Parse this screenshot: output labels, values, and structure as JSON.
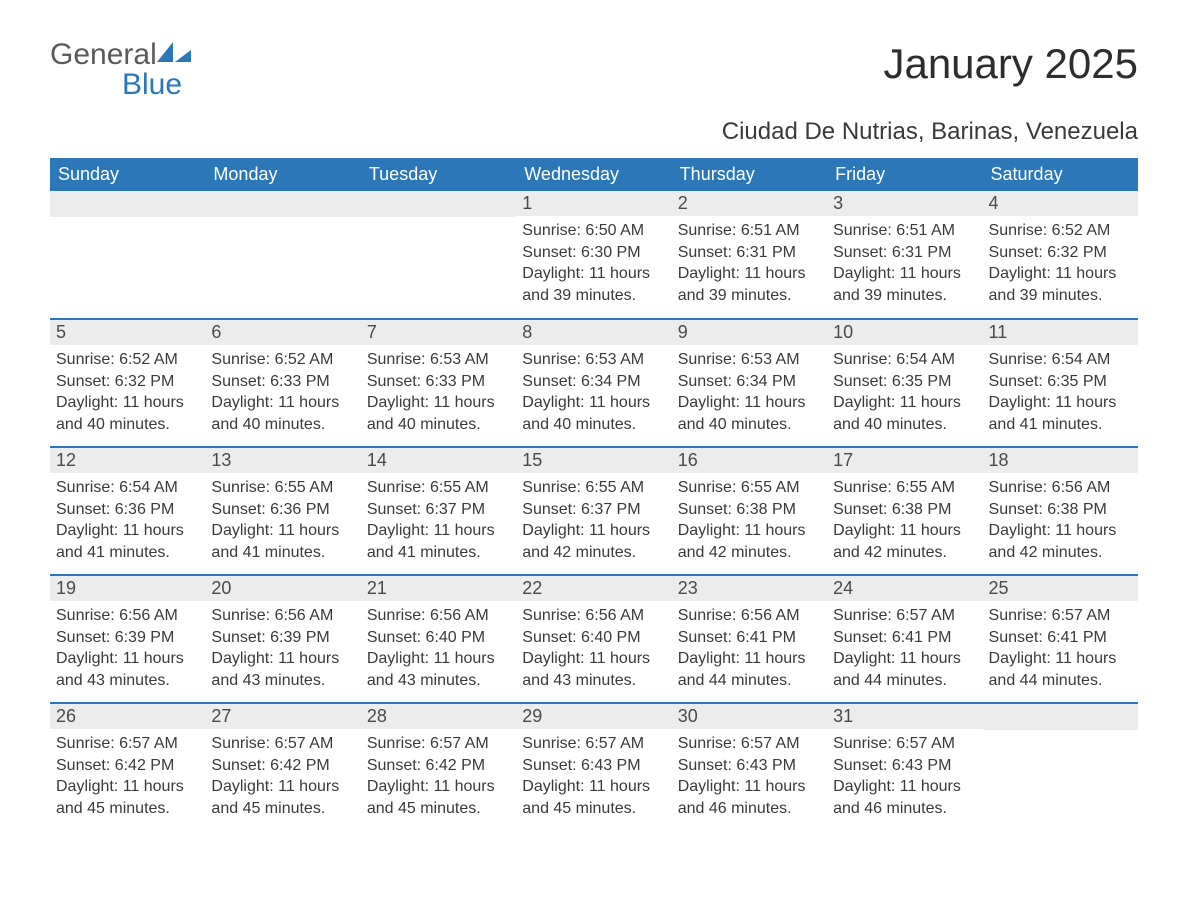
{
  "logo": {
    "general": "General",
    "blue": "Blue"
  },
  "title": "January 2025",
  "location": "Ciudad De Nutrias, Barinas, Venezuela",
  "colors": {
    "accent": "#2b77b8",
    "header_text": "#ffffff",
    "daynum_bg": "#ececec",
    "body_text": "#3a3a3a",
    "page_bg": "#ffffff"
  },
  "calendar": {
    "columns": [
      "Sunday",
      "Monday",
      "Tuesday",
      "Wednesday",
      "Thursday",
      "Friday",
      "Saturday"
    ],
    "weeks": [
      [
        null,
        null,
        null,
        {
          "day": "1",
          "sunrise": "Sunrise: 6:50 AM",
          "sunset": "Sunset: 6:30 PM",
          "daylight1": "Daylight: 11 hours",
          "daylight2": "and 39 minutes."
        },
        {
          "day": "2",
          "sunrise": "Sunrise: 6:51 AM",
          "sunset": "Sunset: 6:31 PM",
          "daylight1": "Daylight: 11 hours",
          "daylight2": "and 39 minutes."
        },
        {
          "day": "3",
          "sunrise": "Sunrise: 6:51 AM",
          "sunset": "Sunset: 6:31 PM",
          "daylight1": "Daylight: 11 hours",
          "daylight2": "and 39 minutes."
        },
        {
          "day": "4",
          "sunrise": "Sunrise: 6:52 AM",
          "sunset": "Sunset: 6:32 PM",
          "daylight1": "Daylight: 11 hours",
          "daylight2": "and 39 minutes."
        }
      ],
      [
        {
          "day": "5",
          "sunrise": "Sunrise: 6:52 AM",
          "sunset": "Sunset: 6:32 PM",
          "daylight1": "Daylight: 11 hours",
          "daylight2": "and 40 minutes."
        },
        {
          "day": "6",
          "sunrise": "Sunrise: 6:52 AM",
          "sunset": "Sunset: 6:33 PM",
          "daylight1": "Daylight: 11 hours",
          "daylight2": "and 40 minutes."
        },
        {
          "day": "7",
          "sunrise": "Sunrise: 6:53 AM",
          "sunset": "Sunset: 6:33 PM",
          "daylight1": "Daylight: 11 hours",
          "daylight2": "and 40 minutes."
        },
        {
          "day": "8",
          "sunrise": "Sunrise: 6:53 AM",
          "sunset": "Sunset: 6:34 PM",
          "daylight1": "Daylight: 11 hours",
          "daylight2": "and 40 minutes."
        },
        {
          "day": "9",
          "sunrise": "Sunrise: 6:53 AM",
          "sunset": "Sunset: 6:34 PM",
          "daylight1": "Daylight: 11 hours",
          "daylight2": "and 40 minutes."
        },
        {
          "day": "10",
          "sunrise": "Sunrise: 6:54 AM",
          "sunset": "Sunset: 6:35 PM",
          "daylight1": "Daylight: 11 hours",
          "daylight2": "and 40 minutes."
        },
        {
          "day": "11",
          "sunrise": "Sunrise: 6:54 AM",
          "sunset": "Sunset: 6:35 PM",
          "daylight1": "Daylight: 11 hours",
          "daylight2": "and 41 minutes."
        }
      ],
      [
        {
          "day": "12",
          "sunrise": "Sunrise: 6:54 AM",
          "sunset": "Sunset: 6:36 PM",
          "daylight1": "Daylight: 11 hours",
          "daylight2": "and 41 minutes."
        },
        {
          "day": "13",
          "sunrise": "Sunrise: 6:55 AM",
          "sunset": "Sunset: 6:36 PM",
          "daylight1": "Daylight: 11 hours",
          "daylight2": "and 41 minutes."
        },
        {
          "day": "14",
          "sunrise": "Sunrise: 6:55 AM",
          "sunset": "Sunset: 6:37 PM",
          "daylight1": "Daylight: 11 hours",
          "daylight2": "and 41 minutes."
        },
        {
          "day": "15",
          "sunrise": "Sunrise: 6:55 AM",
          "sunset": "Sunset: 6:37 PM",
          "daylight1": "Daylight: 11 hours",
          "daylight2": "and 42 minutes."
        },
        {
          "day": "16",
          "sunrise": "Sunrise: 6:55 AM",
          "sunset": "Sunset: 6:38 PM",
          "daylight1": "Daylight: 11 hours",
          "daylight2": "and 42 minutes."
        },
        {
          "day": "17",
          "sunrise": "Sunrise: 6:55 AM",
          "sunset": "Sunset: 6:38 PM",
          "daylight1": "Daylight: 11 hours",
          "daylight2": "and 42 minutes."
        },
        {
          "day": "18",
          "sunrise": "Sunrise: 6:56 AM",
          "sunset": "Sunset: 6:38 PM",
          "daylight1": "Daylight: 11 hours",
          "daylight2": "and 42 minutes."
        }
      ],
      [
        {
          "day": "19",
          "sunrise": "Sunrise: 6:56 AM",
          "sunset": "Sunset: 6:39 PM",
          "daylight1": "Daylight: 11 hours",
          "daylight2": "and 43 minutes."
        },
        {
          "day": "20",
          "sunrise": "Sunrise: 6:56 AM",
          "sunset": "Sunset: 6:39 PM",
          "daylight1": "Daylight: 11 hours",
          "daylight2": "and 43 minutes."
        },
        {
          "day": "21",
          "sunrise": "Sunrise: 6:56 AM",
          "sunset": "Sunset: 6:40 PM",
          "daylight1": "Daylight: 11 hours",
          "daylight2": "and 43 minutes."
        },
        {
          "day": "22",
          "sunrise": "Sunrise: 6:56 AM",
          "sunset": "Sunset: 6:40 PM",
          "daylight1": "Daylight: 11 hours",
          "daylight2": "and 43 minutes."
        },
        {
          "day": "23",
          "sunrise": "Sunrise: 6:56 AM",
          "sunset": "Sunset: 6:41 PM",
          "daylight1": "Daylight: 11 hours",
          "daylight2": "and 44 minutes."
        },
        {
          "day": "24",
          "sunrise": "Sunrise: 6:57 AM",
          "sunset": "Sunset: 6:41 PM",
          "daylight1": "Daylight: 11 hours",
          "daylight2": "and 44 minutes."
        },
        {
          "day": "25",
          "sunrise": "Sunrise: 6:57 AM",
          "sunset": "Sunset: 6:41 PM",
          "daylight1": "Daylight: 11 hours",
          "daylight2": "and 44 minutes."
        }
      ],
      [
        {
          "day": "26",
          "sunrise": "Sunrise: 6:57 AM",
          "sunset": "Sunset: 6:42 PM",
          "daylight1": "Daylight: 11 hours",
          "daylight2": "and 45 minutes."
        },
        {
          "day": "27",
          "sunrise": "Sunrise: 6:57 AM",
          "sunset": "Sunset: 6:42 PM",
          "daylight1": "Daylight: 11 hours",
          "daylight2": "and 45 minutes."
        },
        {
          "day": "28",
          "sunrise": "Sunrise: 6:57 AM",
          "sunset": "Sunset: 6:42 PM",
          "daylight1": "Daylight: 11 hours",
          "daylight2": "and 45 minutes."
        },
        {
          "day": "29",
          "sunrise": "Sunrise: 6:57 AM",
          "sunset": "Sunset: 6:43 PM",
          "daylight1": "Daylight: 11 hours",
          "daylight2": "and 45 minutes."
        },
        {
          "day": "30",
          "sunrise": "Sunrise: 6:57 AM",
          "sunset": "Sunset: 6:43 PM",
          "daylight1": "Daylight: 11 hours",
          "daylight2": "and 46 minutes."
        },
        {
          "day": "31",
          "sunrise": "Sunrise: 6:57 AM",
          "sunset": "Sunset: 6:43 PM",
          "daylight1": "Daylight: 11 hours",
          "daylight2": "and 46 minutes."
        },
        null
      ]
    ]
  }
}
